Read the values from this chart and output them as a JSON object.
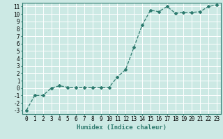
{
  "x": [
    0,
    1,
    2,
    3,
    4,
    5,
    6,
    7,
    8,
    9,
    10,
    11,
    12,
    13,
    14,
    15,
    16,
    17,
    18,
    19,
    20,
    21,
    22,
    23
  ],
  "y": [
    -3,
    -1,
    -1,
    0,
    0.3,
    0.1,
    0.1,
    0.1,
    0.1,
    0.1,
    0.1,
    1.5,
    2.5,
    5.5,
    8.5,
    10.5,
    10.3,
    11.0,
    10.1,
    10.2,
    10.2,
    10.3,
    11.0,
    11.2
  ],
  "line_color": "#2d7a6e",
  "marker": "D",
  "marker_size": 2.0,
  "bg_color": "#cce9e4",
  "grid_color": "#ffffff",
  "xlabel": "Humidex (Indice chaleur)",
  "xlim": [
    -0.5,
    23.5
  ],
  "ylim": [
    -3.5,
    11.5
  ],
  "yticks": [
    -3,
    -2,
    -1,
    0,
    1,
    2,
    3,
    4,
    5,
    6,
    7,
    8,
    9,
    10,
    11
  ],
  "xticks": [
    0,
    1,
    2,
    3,
    4,
    5,
    6,
    7,
    8,
    9,
    10,
    11,
    12,
    13,
    14,
    15,
    16,
    17,
    18,
    19,
    20,
    21,
    22,
    23
  ],
  "tick_fontsize": 5.5,
  "xlabel_fontsize": 6.5,
  "line_width": 0.9
}
